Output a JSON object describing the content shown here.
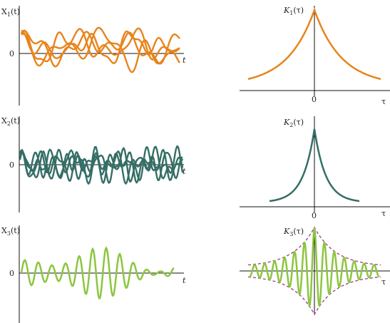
{
  "colors": {
    "orange": "#e8841c",
    "teal": "#356e66",
    "green": "#8cc63f",
    "envelope": "#9b4a8a",
    "axis": "#111111"
  },
  "rows": [
    {
      "process_label": "X",
      "process_sub": "1",
      "process_arg": "(t)",
      "zero_label": "0",
      "t_label": "t",
      "corr_label": "K",
      "corr_sub": "1",
      "corr_arg": "(τ)",
      "corr_zero": "0",
      "tau_label": "τ"
    },
    {
      "process_label": "X",
      "process_sub": "2",
      "process_arg": "(t)",
      "zero_label": "0",
      "t_label": "t",
      "corr_label": "K",
      "corr_sub": "2",
      "corr_arg": "(τ)",
      "corr_zero": "0",
      "tau_label": "τ"
    },
    {
      "process_label": "X",
      "process_sub": "3",
      "process_arg": "(t)",
      "zero_label": "0",
      "t_label": "t",
      "corr_label": "K",
      "corr_sub": "3",
      "corr_arg": "(τ)",
      "corr_zero": "0",
      "tau_label": "τ"
    }
  ]
}
